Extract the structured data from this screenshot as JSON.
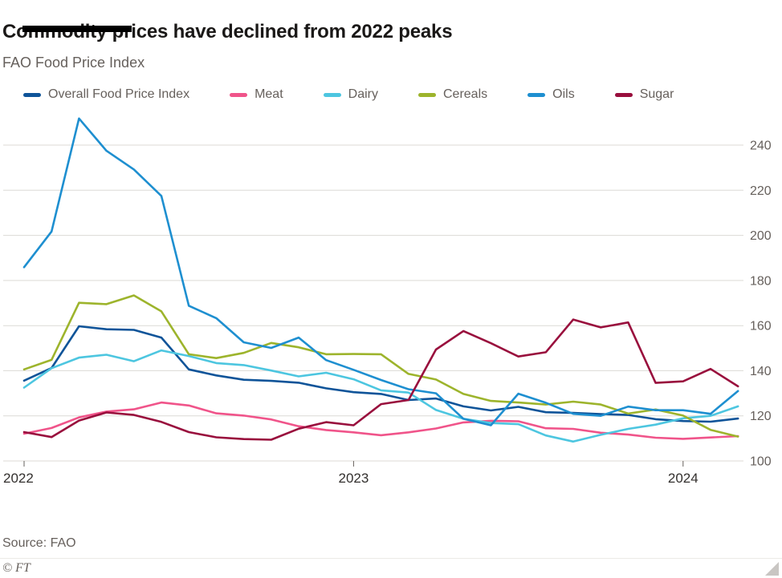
{
  "header": {
    "title": "Commodity prices have declined from 2022 peaks",
    "subtitle": "FAO Food Price Index"
  },
  "footer": {
    "source": "Source: FAO",
    "credit": "© FT"
  },
  "colors": {
    "gridline": "#dcdad5",
    "y_tick_label": "#66605C",
    "x_tick_label": "#33302E",
    "tick_mark": "#66605C"
  },
  "chart_data": {
    "type": "line",
    "title": "Commodity prices have declined from 2022 peaks",
    "subtitle": "FAO Food Price Index",
    "x_unit": "month",
    "x_start": "2022-01",
    "x_end": "2024-03",
    "grid": "horizontal",
    "legend_position": "top",
    "y_axis_side": "right",
    "ylim": [
      100,
      255
    ],
    "y_ticks": [
      100,
      120,
      140,
      160,
      180,
      200,
      220,
      240
    ],
    "x_ticks": [
      {
        "label": "2022",
        "month": 0
      },
      {
        "label": "2023",
        "month": 12
      },
      {
        "label": "2024",
        "month": 24
      }
    ],
    "series": [
      {
        "name": "Overall Food Price Index",
        "color": "#0F5499",
        "values": [
          135.6,
          141.2,
          159.7,
          158.4,
          158.1,
          154.7,
          140.6,
          137.9,
          136.0,
          135.5,
          134.7,
          132.2,
          130.5,
          129.7,
          127.0,
          127.7,
          124.2,
          122.4,
          124.0,
          121.6,
          121.3,
          120.8,
          120.4,
          118.5,
          117.7,
          117.4,
          118.8
        ]
      },
      {
        "name": "Meat",
        "color": "#F0548A",
        "values": [
          112.1,
          114.6,
          119.3,
          121.9,
          122.9,
          125.9,
          124.6,
          121.1,
          120.1,
          118.4,
          115.4,
          113.7,
          112.7,
          111.4,
          112.7,
          114.4,
          117.1,
          117.8,
          117.6,
          114.5,
          114.2,
          112.5,
          111.7,
          110.3,
          109.8,
          110.4,
          111.0
        ]
      },
      {
        "name": "Dairy",
        "color": "#4DC6E0",
        "values": [
          132.5,
          141.1,
          145.8,
          147.1,
          144.2,
          149.0,
          146.5,
          143.4,
          142.5,
          140.1,
          137.5,
          139.1,
          136.2,
          131.3,
          130.3,
          122.6,
          118.7,
          116.8,
          116.3,
          111.3,
          108.6,
          111.6,
          114.2,
          116.1,
          118.9,
          120.0,
          124.2
        ]
      },
      {
        "name": "Cereals",
        "color": "#9DB42C",
        "values": [
          140.6,
          144.8,
          170.1,
          169.5,
          173.4,
          166.3,
          147.3,
          145.6,
          147.9,
          152.3,
          150.4,
          147.3,
          147.4,
          147.3,
          138.6,
          136.1,
          129.7,
          126.6,
          125.9,
          125.0,
          126.3,
          125.0,
          121.0,
          122.8,
          120.1,
          113.8,
          110.8
        ]
      },
      {
        "name": "Oils",
        "color": "#1E8FD0",
        "values": [
          185.9,
          201.7,
          251.8,
          237.5,
          229.2,
          217.5,
          168.8,
          163.3,
          152.6,
          150.1,
          154.7,
          144.7,
          140.4,
          135.9,
          131.8,
          130.0,
          118.7,
          115.8,
          129.8,
          125.8,
          120.9,
          120.0,
          124.1,
          122.5,
          122.5,
          120.9,
          131.0
        ]
      },
      {
        "name": "Sugar",
        "color": "#990F3D",
        "values": [
          112.8,
          110.6,
          117.9,
          121.5,
          120.4,
          117.3,
          112.8,
          110.5,
          109.7,
          109.4,
          114.3,
          117.2,
          115.8,
          125.2,
          127.0,
          149.4,
          157.6,
          152.2,
          146.3,
          148.2,
          162.7,
          159.2,
          161.4,
          134.6,
          135.3,
          140.8,
          133.1
        ]
      }
    ]
  }
}
